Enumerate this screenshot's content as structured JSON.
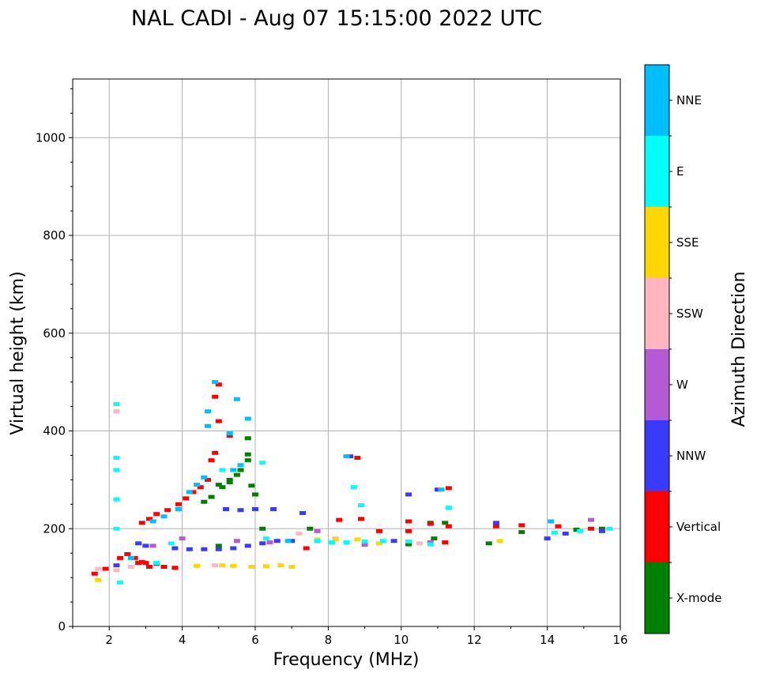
{
  "chart_data": {
    "type": "scatter",
    "title": "NAL CADI - Aug 07 15:15:00 2022 UTC",
    "xlabel": "Frequency (MHz)",
    "ylabel": "Virtual height (km)",
    "xlim": [
      1,
      16
    ],
    "ylim": [
      0,
      1120
    ],
    "xticks": [
      2,
      4,
      6,
      8,
      10,
      12,
      14,
      16
    ],
    "yticks": [
      0,
      200,
      400,
      600,
      800,
      1000
    ],
    "grid": true,
    "colorbar": {
      "title": "Azimuth Direction",
      "categories": [
        {
          "name": "X-mode",
          "color": "#008000"
        },
        {
          "name": "Vertical",
          "color": "#ff0000"
        },
        {
          "name": "NNW",
          "color": "#3a3aff"
        },
        {
          "name": "W",
          "color": "#b45ad2"
        },
        {
          "name": "SSW",
          "color": "#ffb6c1"
        },
        {
          "name": "SSE",
          "color": "#ffd700"
        },
        {
          "name": "E",
          "color": "#00ffff"
        },
        {
          "name": "NNE",
          "color": "#00bfff"
        }
      ]
    },
    "series": [
      {
        "name": "X-mode",
        "points": [
          [
            4.6,
            255
          ],
          [
            4.8,
            265
          ],
          [
            5.1,
            285
          ],
          [
            5.3,
            295
          ],
          [
            5.5,
            310
          ],
          [
            5.6,
            320
          ],
          [
            5.8,
            340
          ],
          [
            5.8,
            352
          ],
          [
            5.8,
            385
          ],
          [
            5.3,
            300
          ],
          [
            5.9,
            288
          ],
          [
            6.0,
            270
          ],
          [
            5.0,
            290
          ],
          [
            6.2,
            200
          ],
          [
            5.0,
            165
          ],
          [
            7.5,
            200
          ],
          [
            10.8,
            212
          ],
          [
            11.2,
            212
          ],
          [
            12.4,
            170
          ],
          [
            13.3,
            193
          ],
          [
            14.8,
            198
          ],
          [
            15.5,
            200
          ],
          [
            10.2,
            168
          ],
          [
            10.9,
            180
          ]
        ]
      },
      {
        "name": "Vertical",
        "points": [
          [
            1.6,
            108
          ],
          [
            1.9,
            118
          ],
          [
            2.3,
            140
          ],
          [
            2.5,
            148
          ],
          [
            2.7,
            140
          ],
          [
            2.8,
            130
          ],
          [
            2.9,
            132
          ],
          [
            3.0,
            130
          ],
          [
            3.1,
            122
          ],
          [
            3.3,
            128
          ],
          [
            3.5,
            122
          ],
          [
            3.8,
            120
          ],
          [
            2.9,
            212
          ],
          [
            3.1,
            220
          ],
          [
            3.3,
            230
          ],
          [
            3.6,
            238
          ],
          [
            3.9,
            250
          ],
          [
            4.1,
            262
          ],
          [
            4.3,
            275
          ],
          [
            4.5,
            285
          ],
          [
            4.7,
            300
          ],
          [
            4.9,
            355
          ],
          [
            4.9,
            470
          ],
          [
            5.0,
            495
          ],
          [
            5.3,
            390
          ],
          [
            4.8,
            340
          ],
          [
            5.0,
            420
          ],
          [
            7.4,
            160
          ],
          [
            8.3,
            218
          ],
          [
            8.9,
            220
          ],
          [
            8.8,
            345
          ],
          [
            9.4,
            195
          ],
          [
            10.2,
            215
          ],
          [
            10.2,
            195
          ],
          [
            10.8,
            210
          ],
          [
            11.3,
            205
          ],
          [
            11.3,
            283
          ],
          [
            11.2,
            172
          ],
          [
            12.6,
            205
          ],
          [
            13.3,
            207
          ],
          [
            14.3,
            205
          ],
          [
            15.2,
            200
          ]
        ]
      },
      {
        "name": "NNW",
        "points": [
          [
            3.8,
            160
          ],
          [
            4.2,
            158
          ],
          [
            4.6,
            158
          ],
          [
            5.0,
            158
          ],
          [
            5.4,
            160
          ],
          [
            5.8,
            165
          ],
          [
            6.2,
            170
          ],
          [
            6.6,
            175
          ],
          [
            7.0,
            175
          ],
          [
            5.2,
            240
          ],
          [
            5.6,
            238
          ],
          [
            6.0,
            240
          ],
          [
            6.5,
            240
          ],
          [
            7.3,
            232
          ],
          [
            8.6,
            348
          ],
          [
            9.8,
            175
          ],
          [
            10.2,
            270
          ],
          [
            11.0,
            280
          ],
          [
            12.6,
            212
          ],
          [
            14.0,
            180
          ],
          [
            14.5,
            190
          ],
          [
            15.5,
            195
          ],
          [
            2.2,
            125
          ],
          [
            2.8,
            170
          ],
          [
            3.0,
            165
          ]
        ]
      },
      {
        "name": "W",
        "points": [
          [
            3.2,
            165
          ],
          [
            4.0,
            180
          ],
          [
            5.5,
            175
          ],
          [
            6.4,
            172
          ],
          [
            7.7,
            195
          ],
          [
            9.0,
            167
          ],
          [
            10.8,
            172
          ],
          [
            15.2,
            218
          ]
        ]
      },
      {
        "name": "SSW",
        "points": [
          [
            1.7,
            118
          ],
          [
            2.2,
            115
          ],
          [
            2.6,
            122
          ],
          [
            4.9,
            125
          ],
          [
            7.2,
            190
          ],
          [
            8.2,
            180
          ],
          [
            10.5,
            170
          ],
          [
            2.2,
            440
          ]
        ]
      },
      {
        "name": "SSE",
        "points": [
          [
            4.4,
            124
          ],
          [
            5.1,
            125
          ],
          [
            5.4,
            124
          ],
          [
            5.9,
            122
          ],
          [
            6.3,
            123
          ],
          [
            6.7,
            125
          ],
          [
            7.0,
            122
          ],
          [
            7.7,
            178
          ],
          [
            8.2,
            178
          ],
          [
            8.8,
            178
          ],
          [
            9.4,
            170
          ],
          [
            12.7,
            175
          ],
          [
            1.7,
            95
          ]
        ]
      },
      {
        "name": "E",
        "points": [
          [
            2.2,
            455
          ],
          [
            2.2,
            345
          ],
          [
            2.2,
            320
          ],
          [
            2.2,
            260
          ],
          [
            2.2,
            200
          ],
          [
            2.3,
            90
          ],
          [
            3.3,
            130
          ],
          [
            3.7,
            170
          ],
          [
            5.1,
            320
          ],
          [
            6.3,
            180
          ],
          [
            7.7,
            175
          ],
          [
            8.1,
            172
          ],
          [
            8.5,
            172
          ],
          [
            9.0,
            174
          ],
          [
            9.5,
            175
          ],
          [
            10.2,
            174
          ],
          [
            10.8,
            168
          ],
          [
            11.3,
            243
          ],
          [
            8.7,
            285
          ],
          [
            8.9,
            248
          ],
          [
            14.2,
            192
          ],
          [
            14.9,
            195
          ],
          [
            15.7,
            200
          ],
          [
            6.2,
            335
          ]
        ]
      },
      {
        "name": "NNE",
        "points": [
          [
            2.6,
            140
          ],
          [
            3.2,
            215
          ],
          [
            3.5,
            225
          ],
          [
            3.9,
            240
          ],
          [
            4.2,
            275
          ],
          [
            4.4,
            290
          ],
          [
            4.6,
            305
          ],
          [
            4.7,
            410
          ],
          [
            4.7,
            440
          ],
          [
            4.9,
            500
          ],
          [
            5.3,
            395
          ],
          [
            5.5,
            465
          ],
          [
            5.8,
            425
          ],
          [
            5.4,
            320
          ],
          [
            5.6,
            330
          ],
          [
            6.9,
            175
          ],
          [
            8.5,
            348
          ],
          [
            14.1,
            215
          ],
          [
            11.1,
            280
          ]
        ]
      }
    ]
  }
}
